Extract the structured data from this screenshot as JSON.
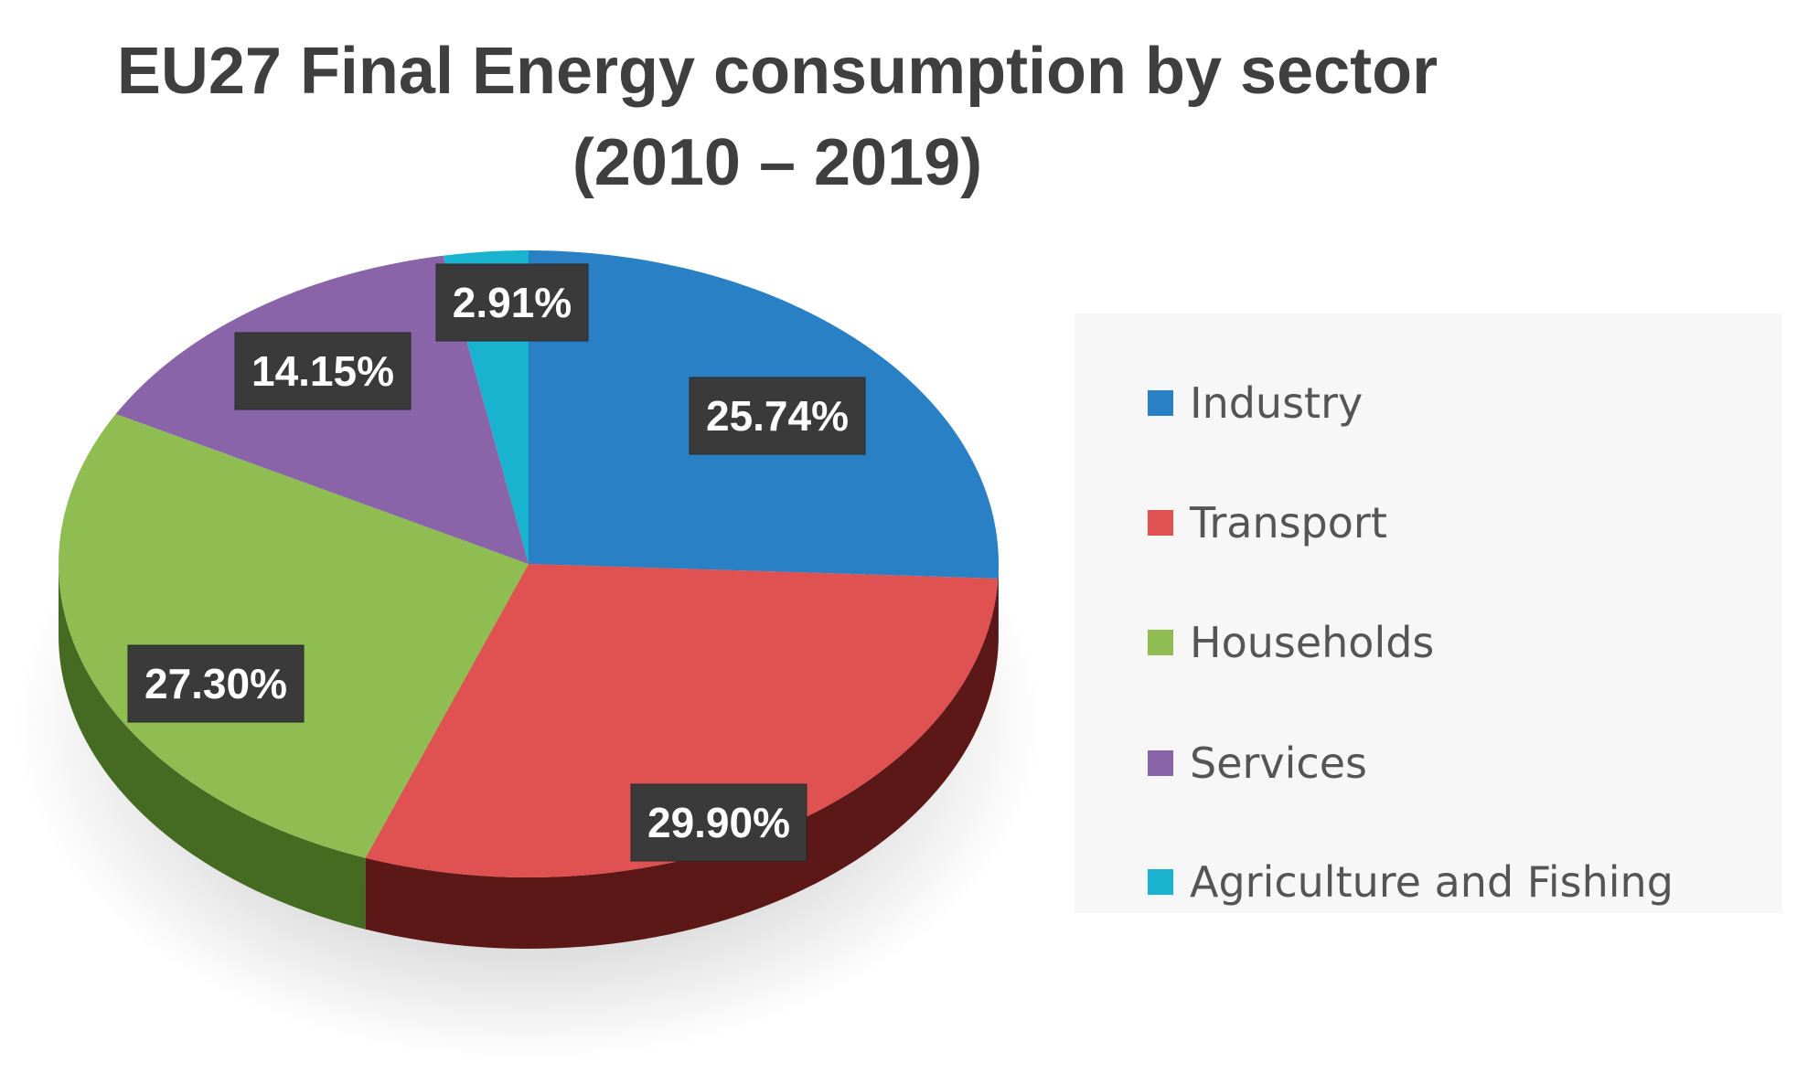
{
  "chart_data": {
    "type": "pie",
    "title": "EU27 Final Energy consumption by sector",
    "subtitle": "(2010 – 2019)",
    "categories": [
      "Industry",
      "Transport",
      "Households",
      "Services",
      "Agriculture and Fishing"
    ],
    "values": [
      25.74,
      29.9,
      27.3,
      14.15,
      2.91
    ],
    "data_labels": [
      "25.74%",
      "29.90%",
      "27.30%",
      "14.15%",
      "2.91%"
    ],
    "colors": [
      "#2980c4",
      "#e05252",
      "#8fbd52",
      "#8a64a8",
      "#19b3cf"
    ],
    "side_colors": [
      "#17496f",
      "#5c1717",
      "#456b22",
      "#4a3060",
      "#0e6877"
    ],
    "legend_position": "right",
    "style": "3d"
  }
}
